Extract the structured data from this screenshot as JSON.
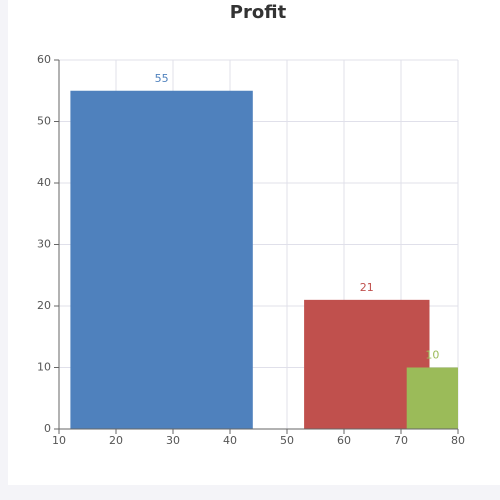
{
  "chart_data": {
    "type": "bar",
    "title": "Profit",
    "bars": [
      {
        "x": [
          12,
          44
        ],
        "value": 55,
        "color": "#4f81bd"
      },
      {
        "x": [
          53,
          75
        ],
        "value": 21,
        "color": "#c0504d"
      },
      {
        "x": [
          71,
          80
        ],
        "value": 10,
        "color": "#9bbb59"
      }
    ],
    "xlim": [
      10,
      80
    ],
    "xticks": [
      10,
      20,
      30,
      40,
      50,
      60,
      70,
      80
    ],
    "ylim": [
      0,
      60
    ],
    "yticks": [
      0,
      10,
      20,
      30,
      40,
      50,
      60
    ],
    "grid": true
  }
}
